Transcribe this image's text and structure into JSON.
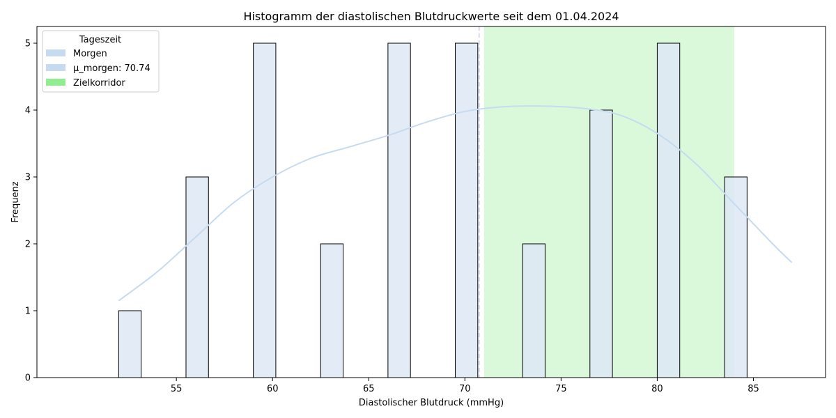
{
  "chart_data": {
    "type": "bar",
    "title": "Histogramm der diastolischen Blutdruckwerte seit dem 01.04.2024",
    "xlabel": "Diastolischer Blutdruck (mmHg)",
    "ylabel": "Frequenz",
    "xlim": [
      47.75,
      88.75
    ],
    "ylim": [
      0,
      5.25
    ],
    "xticks": [
      55,
      60,
      65,
      70,
      75,
      80,
      85
    ],
    "yticks": [
      0,
      1,
      2,
      3,
      4,
      5
    ],
    "grid": false,
    "legend_position": "top-left",
    "legend_title": "Tageszeit",
    "legend": [
      {
        "label": "Morgen",
        "color": "#c6dbef"
      },
      {
        "label": "μ_morgen: 70.74",
        "color": "#c6dbef"
      },
      {
        "label": "Zielkorridor",
        "color": "#90ee90"
      }
    ],
    "series": [
      {
        "name": "Morgen",
        "color": "#dde8f5",
        "edge_color": "#000000",
        "bins": [
          {
            "start": 52.0,
            "end": 53.17,
            "count": 1
          },
          {
            "start": 55.5,
            "end": 56.67,
            "count": 3
          },
          {
            "start": 59.0,
            "end": 60.17,
            "count": 5
          },
          {
            "start": 62.5,
            "end": 63.67,
            "count": 2
          },
          {
            "start": 66.0,
            "end": 67.17,
            "count": 5
          },
          {
            "start": 69.5,
            "end": 70.67,
            "count": 5
          },
          {
            "start": 73.0,
            "end": 74.17,
            "count": 2
          },
          {
            "start": 76.5,
            "end": 77.67,
            "count": 4
          },
          {
            "start": 80.0,
            "end": 81.17,
            "count": 5
          },
          {
            "start": 83.5,
            "end": 84.67,
            "count": 3
          }
        ]
      }
    ],
    "kde": {
      "name": "Morgen",
      "color": "#c6dbef",
      "x": [
        52,
        54,
        56,
        58,
        60,
        62,
        64,
        66,
        68,
        70,
        72,
        74,
        76,
        78,
        80,
        82,
        84,
        86,
        87
      ],
      "y": [
        1.15,
        1.58,
        2.1,
        2.62,
        3.0,
        3.28,
        3.45,
        3.62,
        3.82,
        3.98,
        4.05,
        4.06,
        4.03,
        3.93,
        3.65,
        3.2,
        2.6,
        2.0,
        1.72
      ]
    },
    "mean_line": {
      "label": "μ_morgen: 70.74",
      "x": 70.74,
      "color": "#c6cbe8",
      "style": "dashed"
    },
    "target_band": {
      "label": "Zielkorridor",
      "x_start": 71,
      "x_end": 84,
      "color": "#90ee90",
      "opacity": 0.33
    }
  }
}
